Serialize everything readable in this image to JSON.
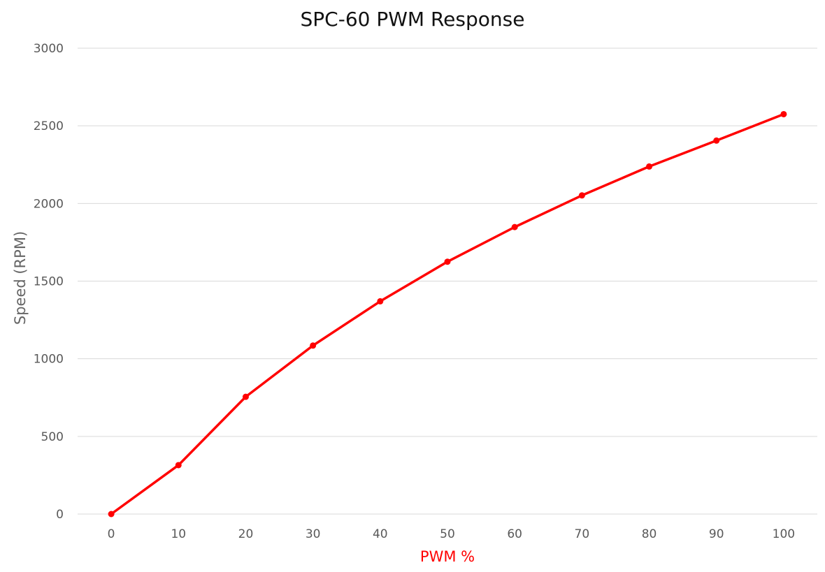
{
  "chart_data": {
    "type": "line",
    "title": "SPC-60 PWM Response",
    "xlabel": "PWM %",
    "ylabel": "Speed (RPM)",
    "x": [
      0,
      10,
      20,
      30,
      40,
      50,
      60,
      70,
      80,
      90,
      100
    ],
    "y_ticks": [
      0,
      500,
      1000,
      1500,
      2000,
      2500,
      3000
    ],
    "ylim": [
      0,
      3000
    ],
    "grid": "horizontal",
    "legend": "none",
    "series": [
      {
        "values": [
          0,
          315,
          755,
          1085,
          1370,
          1625,
          1848,
          2052,
          2238,
          2405,
          2575
        ],
        "color": "#ff0000"
      }
    ],
    "xlabel_color": "#ff0000"
  }
}
